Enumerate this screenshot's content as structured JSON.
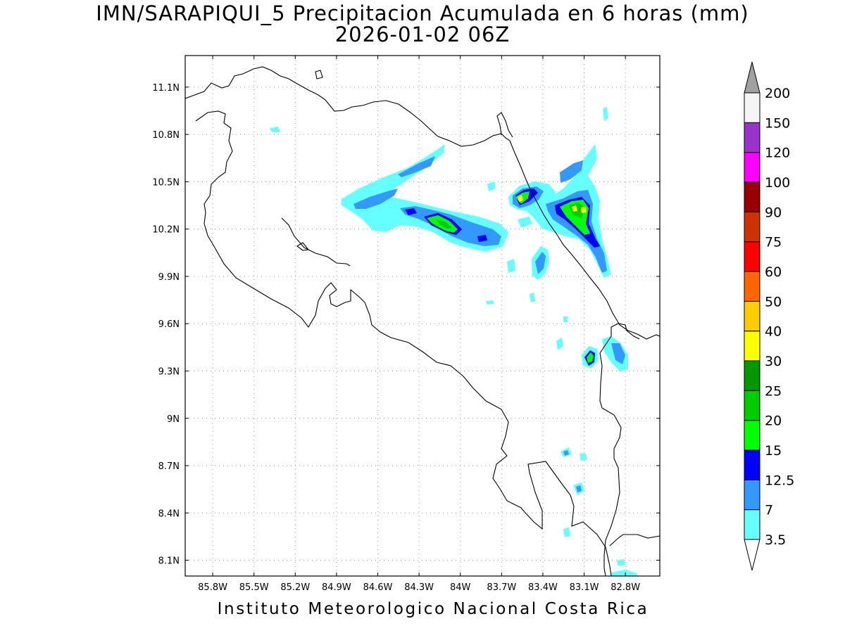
{
  "title": "IMN/SARAPIQUI_5 Precipitacion Acumulada en 6 horas (mm)",
  "subtitle": "2026-01-02 06Z",
  "footer": "Instituto Meteorologico Nacional Costa Rica",
  "map": {
    "lon_range": [
      -86.0,
      -82.55
    ],
    "lat_range": [
      8.0,
      11.3
    ],
    "x_ticks": [
      "85.8W",
      "85.5W",
      "85.2W",
      "84.9W",
      "84.6W",
      "84.3W",
      "84W",
      "83.7W",
      "83.4W",
      "83.1W",
      "82.8W"
    ],
    "x_tick_values": [
      -85.8,
      -85.5,
      -85.2,
      -84.9,
      -84.6,
      -84.3,
      -84.0,
      -83.7,
      -83.4,
      -83.1,
      -82.8
    ],
    "y_ticks": [
      "8.1N",
      "8.4N",
      "8.7N",
      "9N",
      "9.3N",
      "9.6N",
      "9.9N",
      "10.2N",
      "10.5N",
      "10.8N",
      "11.1N"
    ],
    "y_tick_values": [
      8.1,
      8.4,
      8.7,
      9.0,
      9.3,
      9.6,
      9.9,
      10.2,
      10.5,
      10.8,
      11.1
    ],
    "grid": "dotted"
  },
  "colorbar": {
    "levels": [
      "3.5",
      "7",
      "12.5",
      "15",
      "20",
      "25",
      "30",
      "40",
      "50",
      "60",
      "75",
      "90",
      "100",
      "120",
      "150",
      "200"
    ],
    "colors": [
      "#66ffff",
      "#3399ff",
      "#0000ff",
      "#00ff00",
      "#00cc00",
      "#009900",
      "#ffff00",
      "#ffcc00",
      "#ff6600",
      "#ff0000",
      "#cc3300",
      "#990000",
      "#ff00ff",
      "#9933cc",
      "#f5f5f5"
    ],
    "over_color": "#a0a0a0",
    "under_color": "#ffffff"
  },
  "precip_colors": {
    "l1": "#66ffff",
    "l2": "#3399ff",
    "l3": "#0000ff",
    "l4": "#00ff00",
    "l5": "#00cc00",
    "l6": "#ffff00"
  }
}
